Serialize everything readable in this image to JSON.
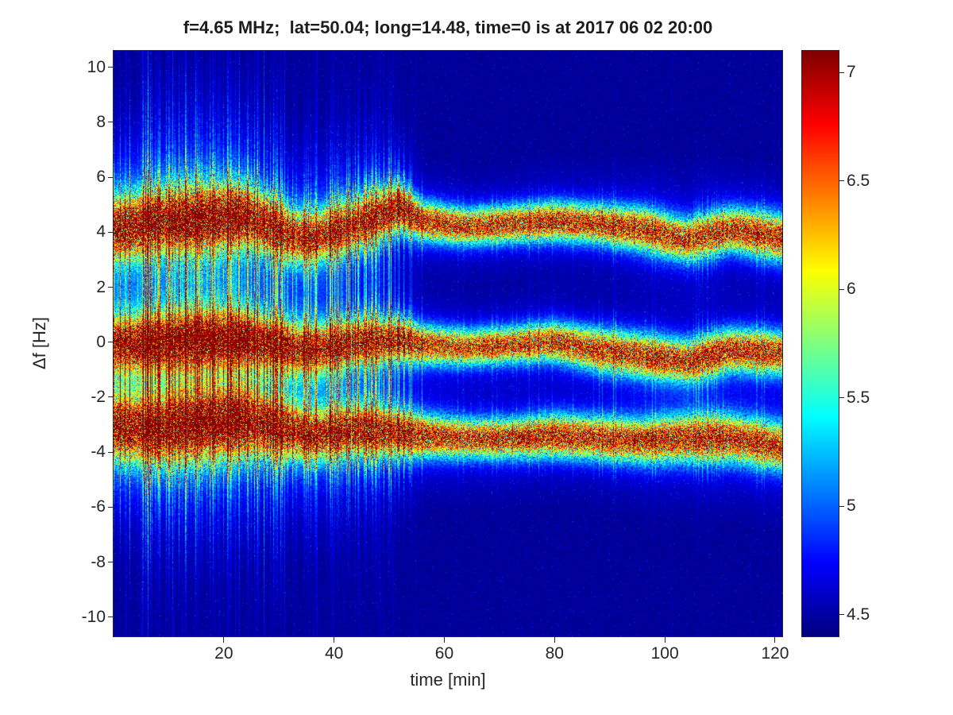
{
  "chart_data": {
    "type": "heatmap",
    "title": "f=4.65 MHz;  lat=50.04; long=14.48, time=0 is at 2017 06 02 20:00",
    "xlabel": "time [min]",
    "ylabel": "Δf [Hz]",
    "xlim": [
      0,
      121.3
    ],
    "ylim": [
      -10.7,
      10.6
    ],
    "clim": [
      4.4,
      7.1
    ],
    "colormap": "jet",
    "grid": false,
    "legend": "none",
    "xticks": [
      20,
      40,
      60,
      80,
      100,
      120
    ],
    "yticks": [
      10,
      8,
      6,
      4,
      2,
      0,
      -2,
      -4,
      -6,
      -8,
      -10
    ],
    "colorbar_ticks": [
      4.5,
      5,
      5.5,
      6,
      6.5,
      7
    ],
    "background_color_hex": "#00008C",
    "peak_color_hex": "#800000",
    "noise": {
      "background_level": 4.42,
      "background_speckle": 0.1,
      "dot_prob": 0.02,
      "dot_max": 0.45,
      "stripe_region_end_min": 56,
      "stripe_prob_early": 0.4,
      "stripe_prob_late": 0.16,
      "line_prob_early": 0.08
    },
    "bands": [
      {
        "name": "upper-doppler-trace",
        "times": [
          0,
          8,
          16,
          24,
          32,
          36,
          44,
          52,
          56,
          64,
          72,
          80,
          88,
          96,
          104,
          112,
          121
        ],
        "center_hz": [
          4.1,
          4.4,
          4.5,
          4.6,
          3.9,
          3.8,
          4.3,
          4.9,
          4.4,
          4.2,
          4.3,
          4.4,
          4.3,
          4.1,
          3.7,
          4.1,
          3.8
        ],
        "core_width_hz": [
          0.75,
          0.75,
          0.8,
          0.7,
          0.6,
          0.6,
          0.6,
          0.55,
          0.45,
          0.42,
          0.42,
          0.45,
          0.45,
          0.5,
          0.5,
          0.5,
          0.55
        ],
        "fringe_width_hz": [
          1.9,
          2.0,
          2.1,
          1.9,
          1.6,
          1.7,
          1.5,
          1.3,
          1.0,
          0.9,
          0.9,
          1.0,
          1.0,
          1.1,
          1.2,
          1.1,
          1.1
        ],
        "amplitude": [
          2.55,
          2.6,
          2.65,
          2.7,
          2.5,
          2.5,
          2.6,
          2.7,
          2.6,
          2.5,
          2.55,
          2.6,
          2.5,
          2.5,
          2.4,
          2.55,
          2.5
        ],
        "fringe_amplitude": [
          0.75,
          0.8,
          0.8,
          0.75,
          0.65,
          0.65,
          0.6,
          0.5,
          0.4,
          0.35,
          0.35,
          0.35,
          0.35,
          0.4,
          0.4,
          0.4,
          0.4
        ]
      },
      {
        "name": "center-doppler-trace",
        "times": [
          0,
          8,
          16,
          24,
          32,
          36,
          44,
          52,
          56,
          64,
          72,
          80,
          88,
          96,
          104,
          112,
          121
        ],
        "center_hz": [
          -0.1,
          0.0,
          0.1,
          0.1,
          -0.2,
          -0.3,
          0.0,
          0.1,
          -0.1,
          -0.2,
          -0.1,
          0.0,
          -0.3,
          -0.5,
          -0.7,
          -0.3,
          -0.4
        ],
        "core_width_hz": [
          0.65,
          0.7,
          0.7,
          0.65,
          0.6,
          0.6,
          0.55,
          0.5,
          0.45,
          0.42,
          0.42,
          0.45,
          0.5,
          0.5,
          0.5,
          0.5,
          0.5
        ],
        "fringe_width_hz": [
          1.6,
          1.7,
          1.8,
          1.7,
          1.5,
          1.5,
          1.4,
          1.2,
          1.0,
          0.9,
          0.9,
          1.0,
          1.0,
          1.1,
          1.1,
          1.0,
          1.0
        ],
        "amplitude": [
          2.4,
          2.5,
          2.6,
          2.65,
          2.5,
          2.5,
          2.55,
          2.5,
          2.4,
          2.35,
          2.4,
          2.5,
          2.45,
          2.5,
          2.5,
          2.55,
          2.5
        ],
        "fringe_amplitude": [
          0.7,
          0.75,
          0.75,
          0.7,
          0.6,
          0.6,
          0.55,
          0.5,
          0.4,
          0.35,
          0.35,
          0.35,
          0.35,
          0.4,
          0.4,
          0.4,
          0.4
        ]
      },
      {
        "name": "lower-doppler-trace",
        "times": [
          0,
          8,
          16,
          24,
          32,
          36,
          44,
          52,
          56,
          64,
          72,
          80,
          88,
          96,
          104,
          112,
          121
        ],
        "center_hz": [
          -3.1,
          -3.2,
          -3.0,
          -2.9,
          -3.2,
          -3.4,
          -3.2,
          -3.3,
          -3.4,
          -3.5,
          -3.5,
          -3.4,
          -3.5,
          -3.6,
          -3.5,
          -3.5,
          -3.8
        ],
        "core_width_hz": [
          0.75,
          0.8,
          0.85,
          0.8,
          0.65,
          0.6,
          0.6,
          0.55,
          0.5,
          0.45,
          0.45,
          0.5,
          0.5,
          0.5,
          0.55,
          0.55,
          0.55
        ],
        "fringe_width_hz": [
          1.9,
          2.0,
          2.1,
          2.0,
          1.7,
          1.7,
          1.5,
          1.3,
          1.1,
          1.0,
          1.0,
          1.0,
          1.0,
          1.1,
          1.2,
          1.2,
          1.2
        ],
        "amplitude": [
          2.5,
          2.6,
          2.65,
          2.7,
          2.55,
          2.5,
          2.6,
          2.55,
          2.5,
          2.45,
          2.5,
          2.55,
          2.5,
          2.45,
          2.5,
          2.5,
          2.45
        ],
        "fringe_amplitude": [
          0.75,
          0.8,
          0.8,
          0.75,
          0.65,
          0.65,
          0.6,
          0.5,
          0.45,
          0.4,
          0.4,
          0.4,
          0.4,
          0.45,
          0.45,
          0.45,
          0.45
        ]
      }
    ]
  }
}
